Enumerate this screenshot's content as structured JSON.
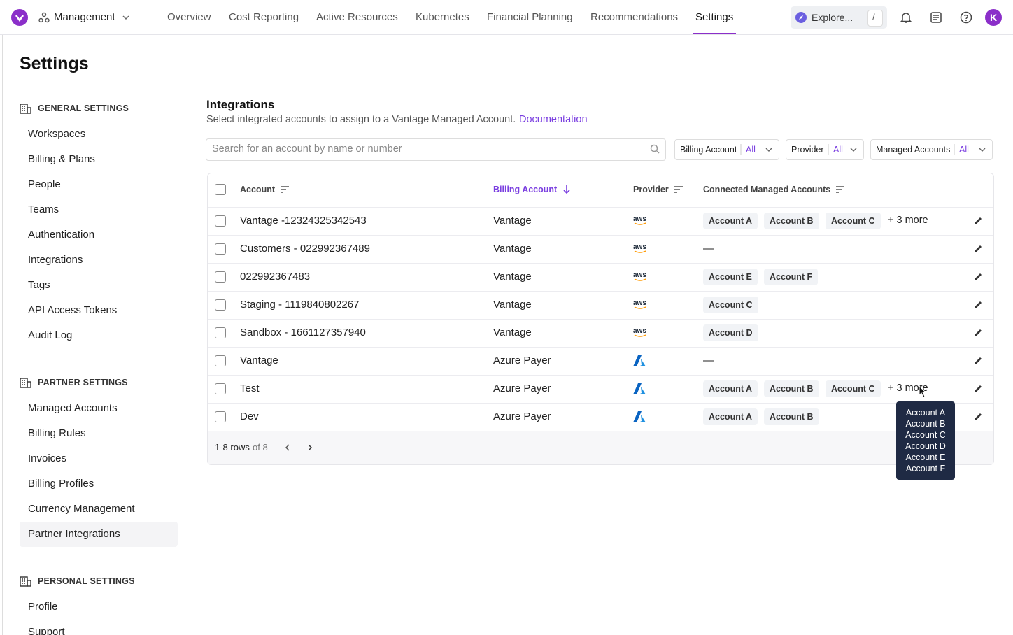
{
  "nav": {
    "workspace": "Management",
    "tabs": [
      {
        "label": "Overview"
      },
      {
        "label": "Cost Reporting"
      },
      {
        "label": "Active Resources"
      },
      {
        "label": "Kubernetes"
      },
      {
        "label": "Financial Planning"
      },
      {
        "label": "Recommendations"
      },
      {
        "label": "Settings",
        "active": true
      }
    ],
    "search": "Explore...",
    "shortcut": "/",
    "avatar": "K"
  },
  "page_title": "Settings",
  "sidebar": [
    {
      "title": "GENERAL SETTINGS",
      "items": [
        "Workspaces",
        "Billing & Plans",
        "People",
        "Teams",
        "Authentication",
        "Integrations",
        "Tags",
        "API Access Tokens",
        "Audit Log"
      ]
    },
    {
      "title": "PARTNER SETTINGS",
      "items": [
        "Managed Accounts",
        "Billing Rules",
        "Invoices",
        "Billing Profiles",
        "Currency Management",
        {
          "label": "Partner Integrations",
          "active": true
        }
      ]
    },
    {
      "title": "PERSONAL SETTINGS",
      "items": [
        "Profile",
        "Support"
      ]
    }
  ],
  "integrations": {
    "title": "Integrations",
    "subtitle": "Select integrated accounts to assign to a Vantage Managed Account.",
    "link": "Documentation",
    "search_placeholder": "Search for an account by name or number",
    "filters": [
      {
        "label": "Billing Account",
        "value": "All"
      },
      {
        "label": "Provider",
        "value": "All"
      },
      {
        "label": "Managed Accounts",
        "value": "All"
      }
    ],
    "columns": [
      {
        "label": "Account"
      },
      {
        "label": "Billing Account",
        "sort": "desc"
      },
      {
        "label": "Provider"
      },
      {
        "label": "Connected Managed Accounts"
      }
    ],
    "empty_label": "—",
    "rows": [
      {
        "account": "Vantage -12324325342543",
        "billing": "Vantage",
        "provider": "aws",
        "accounts": [
          "Account A",
          "Account B",
          "Account C"
        ],
        "more": "+ 3 more"
      },
      {
        "account": "Customers - 022992367489",
        "billing": "Vantage",
        "provider": "aws",
        "accounts": []
      },
      {
        "account": "022992367483",
        "billing": "Vantage",
        "provider": "aws",
        "accounts": [
          "Account E",
          "Account F"
        ]
      },
      {
        "account": "Staging - 1119840802267",
        "billing": "Vantage",
        "provider": "aws",
        "accounts": [
          "Account C"
        ]
      },
      {
        "account": "Sandbox - 1661127357940",
        "billing": "Vantage",
        "provider": "aws",
        "accounts": [
          "Account D"
        ]
      },
      {
        "account": "Vantage",
        "billing": "Azure Payer",
        "provider": "azure",
        "accounts": []
      },
      {
        "account": "Test",
        "billing": "Azure Payer",
        "provider": "azure",
        "accounts": [
          "Account A",
          "Account B",
          "Account C"
        ],
        "more": "+ 3 more"
      },
      {
        "account": "Dev",
        "billing": "Azure Payer",
        "provider": "azure",
        "accounts": [
          "Account A",
          "Account B"
        ]
      }
    ],
    "pagination": {
      "rows": "1-8 rows",
      "total": "of 8"
    },
    "tooltip": [
      "Account A",
      "Account B",
      "Account C",
      "Account D",
      "Account E",
      "Account F"
    ]
  }
}
